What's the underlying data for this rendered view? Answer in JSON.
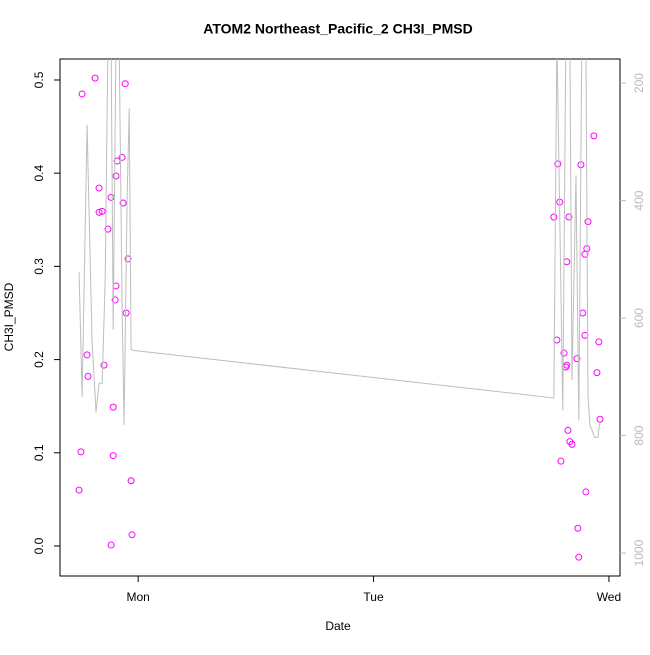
{
  "chart_data": {
    "type": "scatter",
    "title": "ATOM2 Northeast_Pacific_2 CH3I_PMSD",
    "x_label": "Date",
    "y_label": "CH3I_PMSD",
    "xlim": [
      0.668,
      3.047
    ],
    "xticks": [
      {
        "value": 1,
        "label": "Mon"
      },
      {
        "value": 2,
        "label": "Tue"
      },
      {
        "value": 3,
        "label": "Wed"
      }
    ],
    "ylim": [
      -0.0322,
      0.5225
    ],
    "yticks": [
      {
        "value": 0,
        "label": "0.0"
      },
      0.1,
      0.2,
      0.3,
      0.4,
      0.5
    ],
    "y2lim": [
      1039,
      159
    ],
    "y2ticks": [
      200,
      400,
      600,
      800,
      1000
    ],
    "series": [
      {
        "color": "#ff00ff",
        "x": [
          0.749,
          0.757,
          0.762,
          0.783,
          0.787,
          0.817,
          0.834,
          0.834,
          0.847,
          0.855,
          0.872,
          0.885,
          0.885,
          0.894,
          0.894,
          0.902,
          0.906,
          0.906,
          0.911,
          0.932,
          0.936,
          0.945,
          0.949,
          0.957,
          0.97,
          0.974,
          2.766,
          2.779,
          2.783,
          2.791,
          2.796,
          2.809,
          2.817,
          2.821,
          2.821,
          2.826,
          2.83,
          2.834,
          2.843,
          2.864,
          2.868,
          2.872,
          2.881,
          2.889,
          2.898,
          2.898,
          2.902,
          2.906,
          2.911,
          2.936,
          2.949,
          2.957,
          2.962
        ],
        "values": [
          0.06,
          0.101,
          0.485,
          0.205,
          0.182,
          0.502,
          0.384,
          0.358,
          0.359,
          0.194,
          0.34,
          0.374,
          0.001,
          0.097,
          0.149,
          0.264,
          0.279,
          0.397,
          0.413,
          0.417,
          0.368,
          0.496,
          0.25,
          0.308,
          0.07,
          0.012,
          0.353,
          0.221,
          0.41,
          0.369,
          0.091,
          0.207,
          0.192,
          0.305,
          0.194,
          0.124,
          0.353,
          0.112,
          0.109,
          0.201,
          0.019,
          -0.012,
          0.409,
          0.25,
          0.313,
          0.226,
          0.058,
          0.319,
          0.348,
          0.44,
          0.186,
          0.219,
          0.136
        ]
      },
      {
        "color": "#bebebe",
        "axis": "y2",
        "line": true,
        "x": [
          0.749,
          0.762,
          0.783,
          0.804,
          0.821,
          0.834,
          0.847,
          0.86,
          0.872,
          0.885,
          0.894,
          0.906,
          0.919,
          0.932,
          0.94,
          0.953,
          0.962,
          0.97,
          0.979,
          2.766,
          2.779,
          2.804,
          2.817,
          2.834,
          2.843,
          2.86,
          2.872,
          2.885,
          2.902,
          2.911,
          2.919,
          2.94,
          2.953,
          2.962
        ],
        "values": [
          522,
          734,
          271,
          637,
          760,
          711,
          711,
          535,
          120,
          120,
          620,
          120,
          120,
          586,
          782,
          399,
          243,
          653,
          655,
          736,
          120,
          757,
          120,
          120,
          706,
          357,
          774,
          120,
          120,
          731,
          782,
          803,
          803,
          774
        ]
      }
    ]
  }
}
